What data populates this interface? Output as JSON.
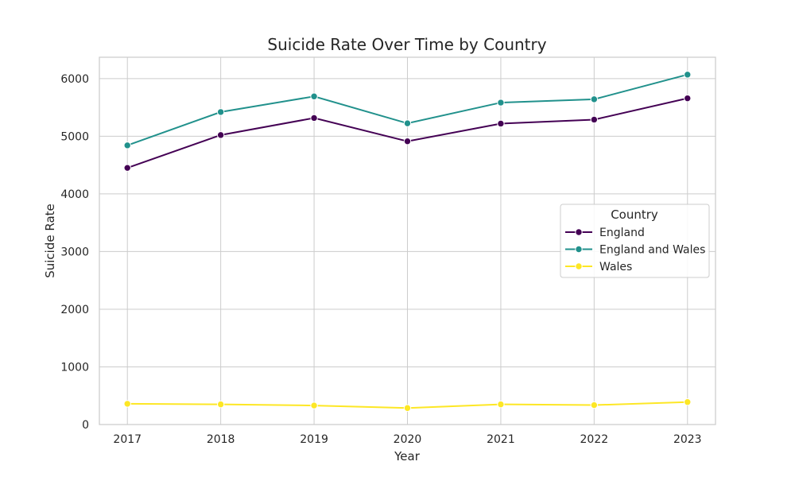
{
  "chart_data": {
    "type": "line",
    "title": "Suicide Rate Over Time by Country",
    "xlabel": "Year",
    "ylabel": "Suicide Rate",
    "x": [
      2017,
      2018,
      2019,
      2020,
      2021,
      2022,
      2023
    ],
    "xlim": [
      2016.7,
      2023.3
    ],
    "ylim": [
      0,
      6370
    ],
    "yticks": [
      0,
      1000,
      2000,
      3000,
      4000,
      5000,
      6000
    ],
    "grid": true,
    "legend": {
      "title": "Country",
      "placement": "center-right"
    },
    "series": [
      {
        "name": "England",
        "color": "#440154",
        "values": [
          4451,
          5021,
          5316,
          4912,
          5219,
          5288,
          5658
        ]
      },
      {
        "name": "England and Wales",
        "color": "#21918c",
        "values": [
          4842,
          5420,
          5691,
          5224,
          5583,
          5641,
          6069
        ]
      },
      {
        "name": "Wales",
        "color": "#fde725",
        "values": [
          360,
          350,
          330,
          286,
          350,
          337,
          390
        ]
      }
    ]
  }
}
